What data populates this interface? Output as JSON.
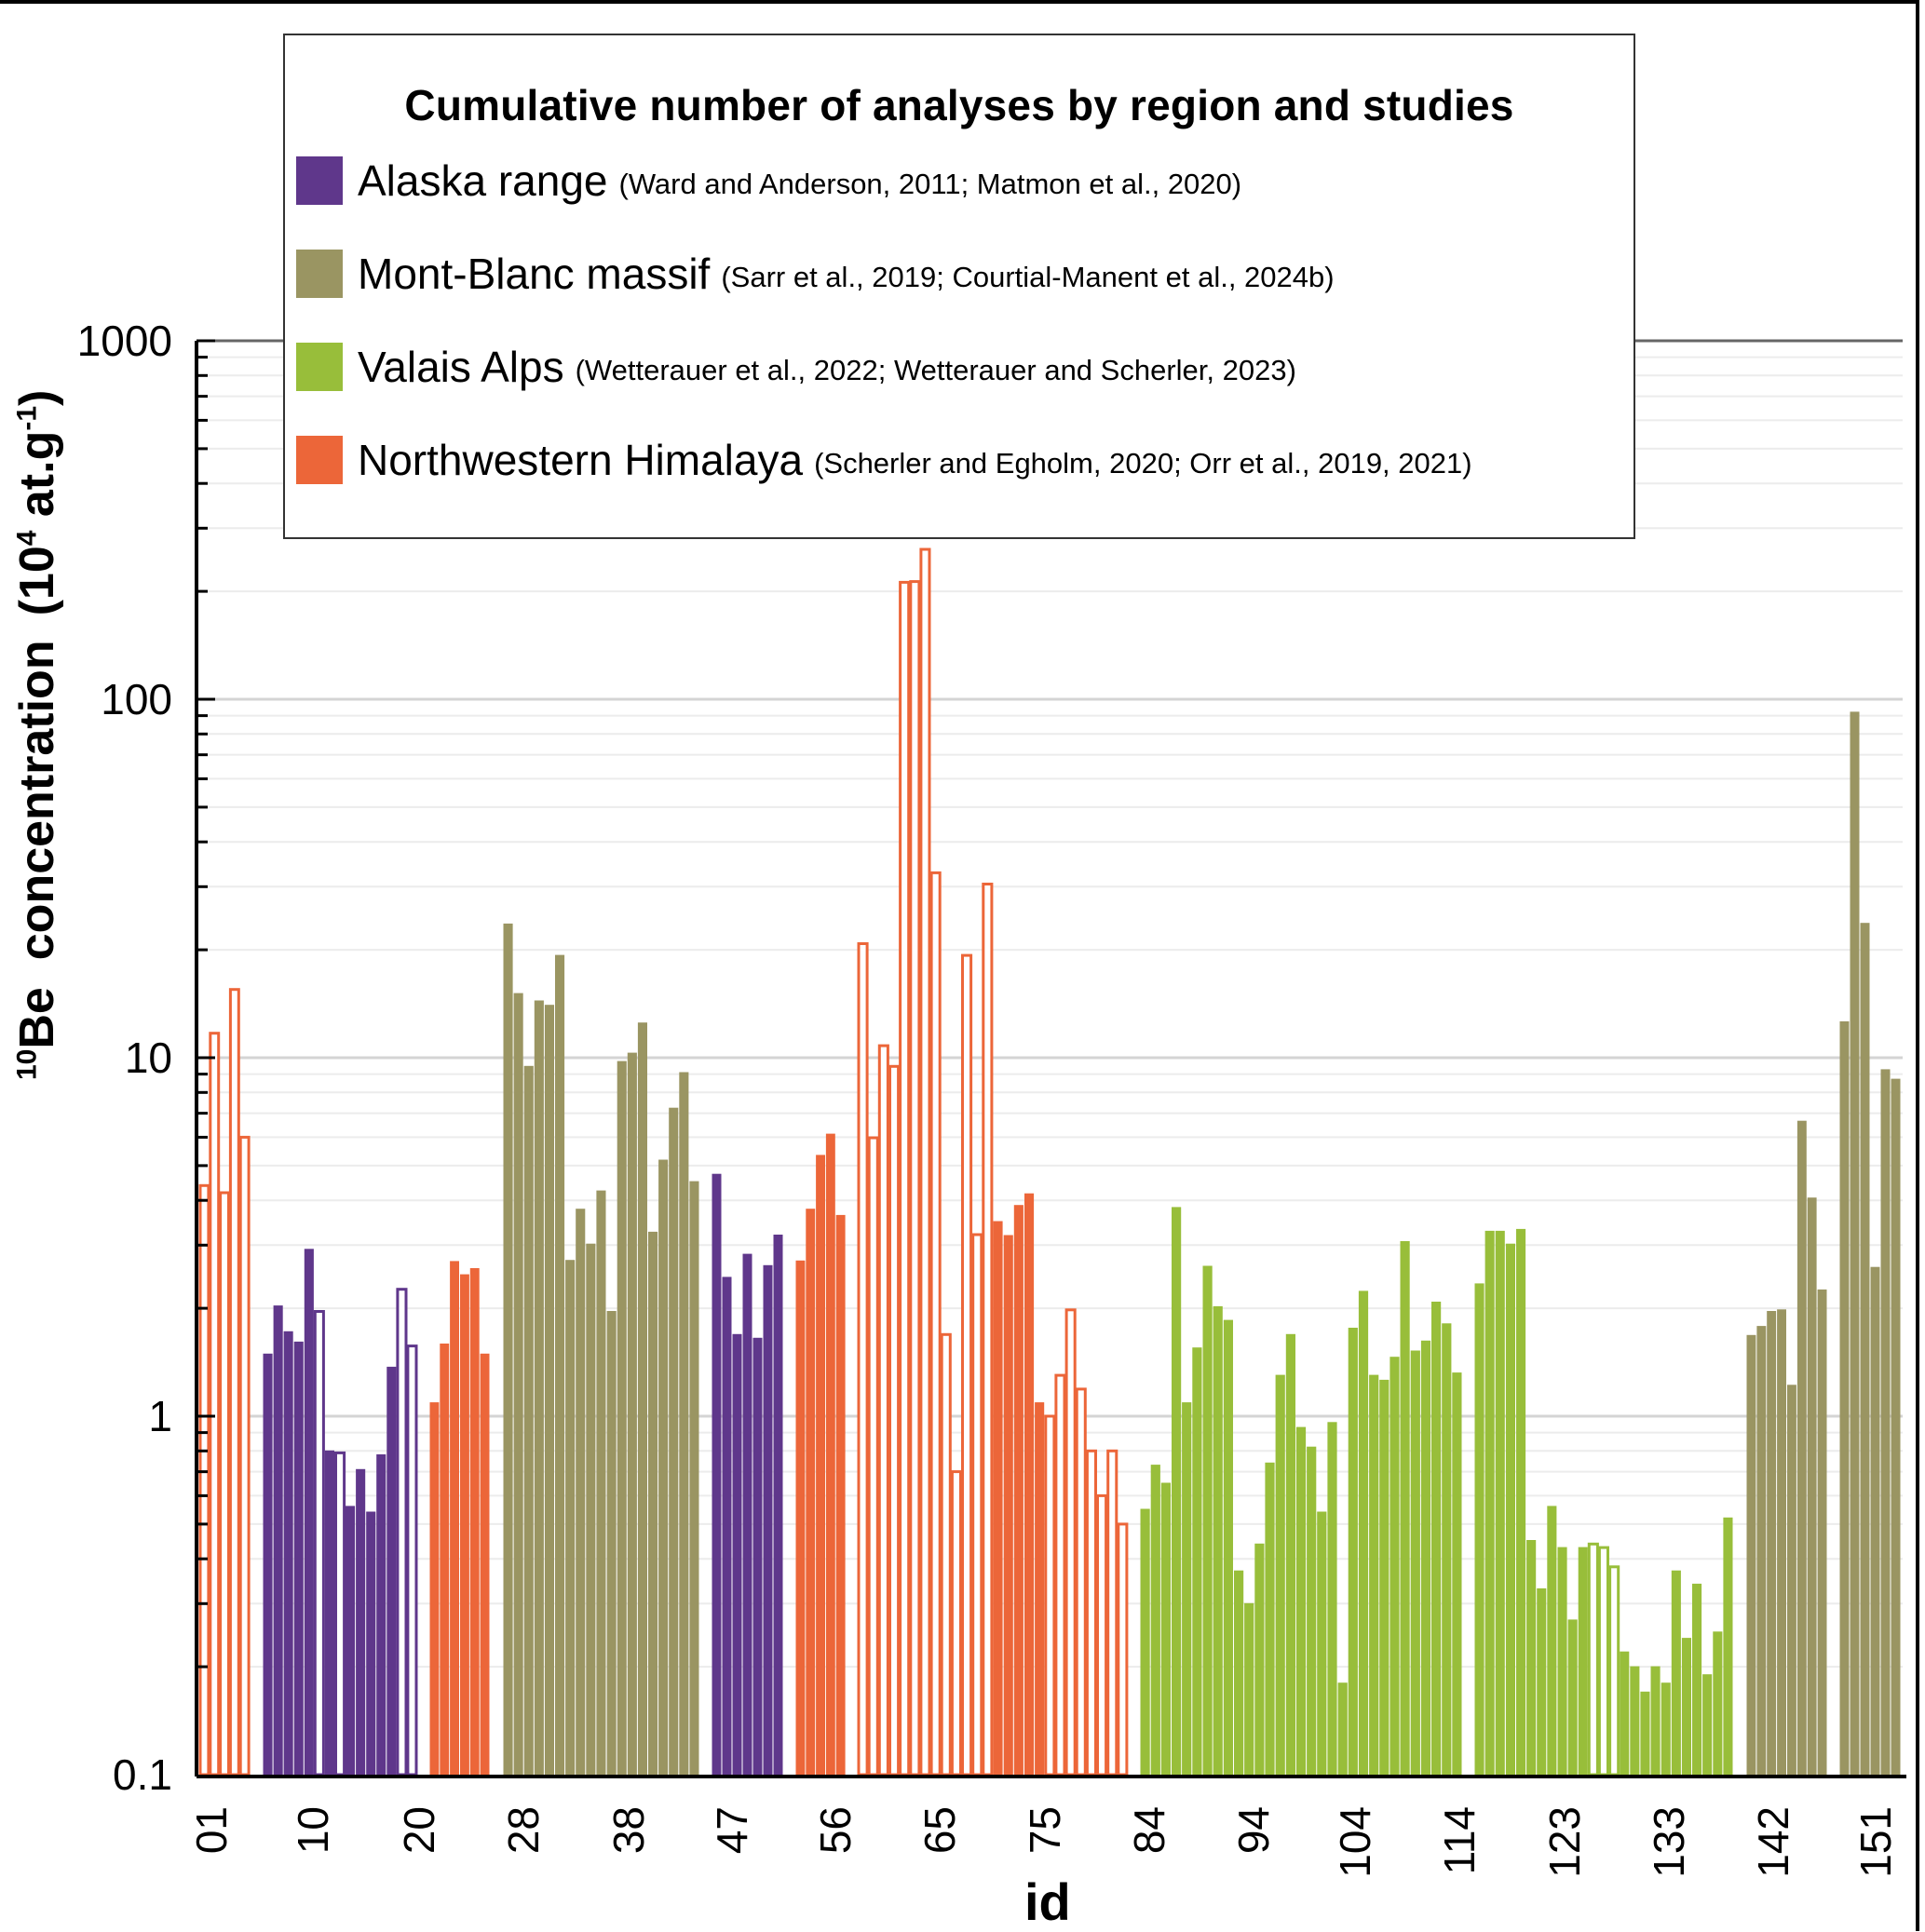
{
  "chart_data": {
    "type": "bar",
    "title": "",
    "xlabel": "id",
    "ylabel": "10Be concentration (10^4 at.g-1)",
    "ylabel_parts": {
      "sup_mass": "10",
      "element": "Be",
      "word": "concentration",
      "unit_open": "(10",
      "unit_exp": "4",
      "unit_mid": " at.g",
      "unit_exp2": "-1",
      "unit_close": ")"
    },
    "yscale": "log",
    "ylim": [
      0.1,
      1000
    ],
    "y_ticks": [
      {
        "value": 1000,
        "label": "1000"
      },
      {
        "value": 100,
        "label": "100"
      },
      {
        "value": 10,
        "label": "10"
      },
      {
        "value": 1,
        "label": "1"
      },
      {
        "value": 0.1,
        "label": "0.1"
      }
    ],
    "x_tick_labels": [
      "01",
      "10",
      "20",
      "28",
      "38",
      "47",
      "56",
      "65",
      "75",
      "84",
      "94",
      "104",
      "114",
      "123",
      "133",
      "142",
      "151"
    ],
    "grid": true,
    "legend": {
      "placement": "top",
      "title": "Cumulative number of analyses by region and studies",
      "entries": [
        {
          "region": "Alaska range",
          "refs": "(Ward and Anderson, 2011; Matmon et al., 2020)",
          "color": "#5f378b"
        },
        {
          "region": "Mont-Blanc massif",
          "refs": "(Sarr et al., 2019; Courtial-Manent et al., 2024b)",
          "color": "#9a9562"
        },
        {
          "region": "Valais Alps",
          "refs": "(Wetterauer et al., 2022; Wetterauer and Scherler, 2023)",
          "color": "#98be3a"
        },
        {
          "region": "Northwestern Himalaya",
          "refs": "(Scherler and Egholm, 2020; Orr et al., 2019, 2021)",
          "color": "#ec6639"
        }
      ]
    },
    "series": [
      {
        "name": "Northwestern Himalaya",
        "color": "#ec6639",
        "values": [
          4.4,
          11.7,
          4.2,
          15.5,
          6.0
        ],
        "hollow": [
          true,
          true,
          true,
          true,
          true
        ]
      },
      {
        "name": "Alaska range",
        "color": "#5f378b",
        "values": [
          1.49,
          2.03,
          1.72,
          1.61,
          2.92,
          1.96,
          0.8,
          0.79,
          0.56,
          0.71,
          0.54,
          0.78,
          1.37,
          2.26,
          1.57
        ],
        "hollow": [
          false,
          false,
          false,
          false,
          false,
          true,
          false,
          true,
          false,
          false,
          false,
          false,
          false,
          true,
          true
        ]
      },
      {
        "name": "Northwestern Himalaya",
        "color": "#ec6639",
        "values": [
          1.09,
          1.59,
          2.7,
          2.48,
          2.58,
          1.49
        ],
        "hollow": [
          false,
          false,
          false,
          false,
          false,
          false
        ]
      },
      {
        "name": "Mont-Blanc massif",
        "color": "#9a9562",
        "values": [
          23.6,
          15.1,
          9.46,
          14.4,
          14.0,
          19.3,
          2.72,
          3.78,
          3.02,
          4.25,
          1.96,
          9.76,
          10.3,
          12.5,
          3.26,
          5.18,
          7.23,
          9.09,
          4.51
        ],
        "hollow": [
          false,
          false,
          false,
          false,
          false,
          false,
          false,
          false,
          false,
          false,
          false,
          false,
          false,
          false,
          false,
          false,
          false,
          false,
          false
        ]
      },
      {
        "name": "Alaska range",
        "color": "#5f378b",
        "values": [
          4.73,
          2.44,
          1.69,
          2.83,
          1.65,
          2.63,
          3.2
        ],
        "hollow": [
          false,
          false,
          false,
          false,
          false,
          false,
          false
        ]
      },
      {
        "name": "Northwestern Himalaya",
        "color": "#ec6639",
        "values": [
          2.71,
          3.78,
          5.34,
          6.12,
          3.63
        ],
        "hollow": [
          false,
          false,
          false,
          false,
          false
        ]
      },
      {
        "name": "Northwestern Himalaya",
        "color": "#ec6639",
        "values": [
          20.8,
          5.98,
          10.8,
          9.46,
          212,
          213,
          262,
          32.8,
          1.69,
          0.7,
          19.3,
          3.21,
          30.5,
          3.49,
          3.19,
          3.87,
          4.17,
          1.09,
          1.0,
          1.3,
          1.98,
          1.19,
          0.8,
          0.6,
          0.8,
          0.5
        ],
        "hollow": [
          true,
          true,
          true,
          true,
          true,
          true,
          true,
          true,
          true,
          true,
          true,
          true,
          true,
          false,
          false,
          false,
          false,
          false,
          true,
          true,
          true,
          true,
          true,
          true,
          true,
          true
        ]
      },
      {
        "name": "Valais Alps",
        "color": "#98be3a",
        "values": [
          0.55,
          0.73,
          0.65,
          3.82,
          1.09,
          1.55,
          2.62,
          2.02,
          1.85,
          0.37,
          0.3,
          0.44,
          0.74,
          1.3,
          1.69,
          0.93,
          0.82,
          0.54,
          0.96,
          0.18,
          1.76,
          2.23,
          1.3,
          1.26,
          1.46,
          3.07,
          1.52,
          1.62,
          2.08,
          1.81,
          1.32
        ],
        "hollow": [
          false,
          false,
          false,
          false,
          false,
          false,
          false,
          false,
          false,
          false,
          false,
          false,
          false,
          false,
          false,
          false,
          false,
          false,
          false,
          false,
          false,
          false,
          false,
          false,
          false,
          false,
          false,
          false,
          false,
          false,
          false
        ]
      },
      {
        "name": "Valais Alps",
        "color": "#98be3a",
        "values": [
          2.34,
          3.28,
          3.28,
          3.02,
          3.32,
          0.45,
          0.33,
          0.56,
          0.43,
          0.27,
          0.43,
          0.44,
          0.43,
          0.38,
          0.22,
          0.2,
          0.17,
          0.2,
          0.18,
          0.37,
          0.24,
          0.34,
          0.19,
          0.25,
          0.52
        ],
        "hollow": [
          false,
          false,
          false,
          false,
          false,
          false,
          false,
          false,
          false,
          false,
          false,
          true,
          true,
          true,
          false,
          false,
          false,
          false,
          false,
          false,
          false,
          false,
          false,
          false,
          false
        ]
      },
      {
        "name": "Mont-Blanc massif",
        "color": "#9a9562",
        "values": [
          1.68,
          1.78,
          1.96,
          1.98,
          1.22,
          6.65,
          4.06,
          2.25
        ],
        "hollow": [
          false,
          false,
          false,
          false,
          false,
          false,
          false,
          false
        ]
      },
      {
        "name": "Mont-Blanc massif",
        "color": "#9a9562",
        "values": [
          12.6,
          92,
          23.7,
          2.6,
          9.26,
          8.71
        ],
        "hollow": [
          false,
          false,
          false,
          false,
          false,
          false
        ]
      }
    ]
  }
}
